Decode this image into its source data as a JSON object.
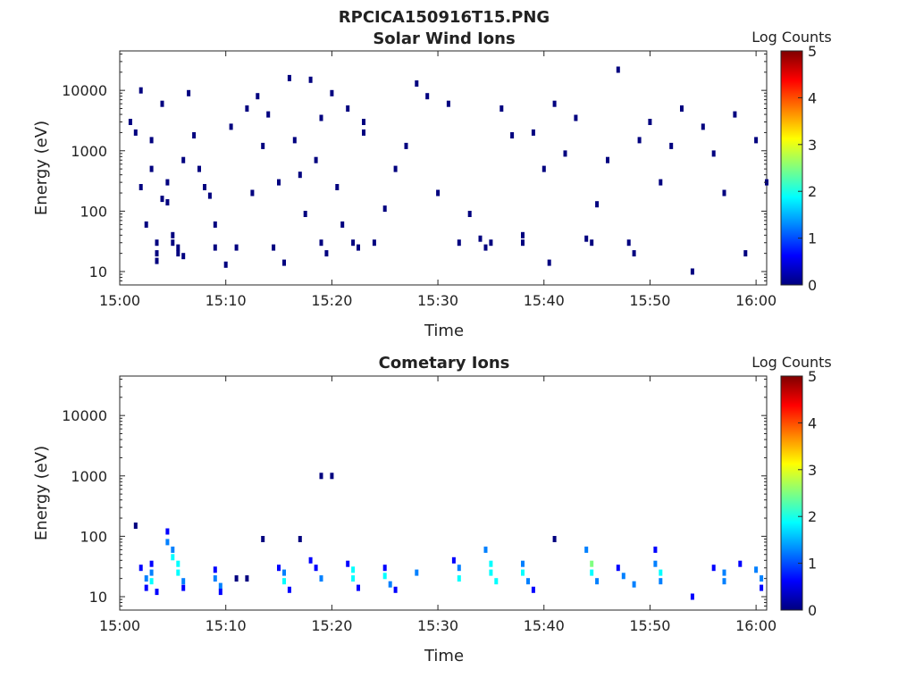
{
  "figure_title": "RPCICA150916T15.PNG",
  "colormap": [
    "#00007f",
    "#0000ff",
    "#0080ff",
    "#00ffff",
    "#80ff80",
    "#ffff00",
    "#ff8000",
    "#ff0000",
    "#7f0000"
  ],
  "chart_data": [
    {
      "type": "heatmap",
      "title": "Solar Wind Ions",
      "xlabel": "Time",
      "ylabel": "Energy (eV)",
      "colorbar_label": "Log Counts",
      "x_ticks": [
        "15:00",
        "15:10",
        "15:20",
        "15:30",
        "15:40",
        "15:50",
        "16:00"
      ],
      "xlim": [
        "15:00",
        "16:01"
      ],
      "y_scale": "log",
      "y_ticks": [
        10,
        100,
        1000,
        10000
      ],
      "y_tick_labels": [
        "10",
        "100",
        "1000",
        "10000"
      ],
      "ylim": [
        6,
        45000
      ],
      "clim": [
        0,
        5
      ],
      "colorbar_ticks": [
        "0",
        "1",
        "2",
        "3",
        "4",
        "5"
      ],
      "cells": [
        [
          "15:01",
          3000,
          0.2
        ],
        [
          "15:01.5",
          2000,
          0.2
        ],
        [
          "15:02",
          10000,
          0.2
        ],
        [
          "15:02",
          250,
          0.2
        ],
        [
          "15:02.5",
          60,
          0.2
        ],
        [
          "15:03",
          1500,
          0.2
        ],
        [
          "15:03",
          500,
          0.2
        ],
        [
          "15:03.5",
          30,
          0.3
        ],
        [
          "15:03.5",
          20,
          0.3
        ],
        [
          "15:03.5",
          15,
          0.3
        ],
        [
          "15:04",
          6000,
          0.2
        ],
        [
          "15:04",
          160,
          0.2
        ],
        [
          "15:04.5",
          300,
          0.2
        ],
        [
          "15:04.5",
          140,
          0.2
        ],
        [
          "15:05",
          40,
          0.3
        ],
        [
          "15:05",
          30,
          0.3
        ],
        [
          "15:05.5",
          25,
          0.3
        ],
        [
          "15:05.5",
          20,
          0.3
        ],
        [
          "15:06",
          700,
          0.2
        ],
        [
          "15:06",
          18,
          0.3
        ],
        [
          "15:06.5",
          9000,
          0.2
        ],
        [
          "15:07",
          1800,
          0.2
        ],
        [
          "15:07.5",
          500,
          0.2
        ],
        [
          "15:08",
          250,
          0.2
        ],
        [
          "15:08.5",
          180,
          0.2
        ],
        [
          "15:09",
          60,
          0.2
        ],
        [
          "15:09",
          25,
          0.2
        ],
        [
          "15:10",
          13,
          0.2
        ],
        [
          "15:10.5",
          2500,
          0.2
        ],
        [
          "15:11",
          25,
          0.2
        ],
        [
          "15:12",
          5000,
          0.2
        ],
        [
          "15:12.5",
          200,
          0.2
        ],
        [
          "15:13",
          8000,
          0.2
        ],
        [
          "15:13.5",
          1200,
          0.2
        ],
        [
          "15:14",
          4000,
          0.2
        ],
        [
          "15:14.5",
          25,
          0.2
        ],
        [
          "15:15",
          300,
          0.2
        ],
        [
          "15:15.5",
          14,
          0.2
        ],
        [
          "15:16",
          16000,
          0.2
        ],
        [
          "15:16.5",
          1500,
          0.2
        ],
        [
          "15:17",
          400,
          0.2
        ],
        [
          "15:17.5",
          90,
          0.2
        ],
        [
          "15:18",
          15000,
          0.2
        ],
        [
          "15:18.5",
          700,
          0.2
        ],
        [
          "15:19",
          3500,
          0.2
        ],
        [
          "15:19",
          30,
          0.2
        ],
        [
          "15:19.5",
          20,
          0.2
        ],
        [
          "15:20",
          9000,
          0.2
        ],
        [
          "15:20.5",
          250,
          0.2
        ],
        [
          "15:21",
          60,
          0.2
        ],
        [
          "15:21.5",
          5000,
          0.2
        ],
        [
          "15:22",
          30,
          0.2
        ],
        [
          "15:22.5",
          25,
          0.2
        ],
        [
          "15:23",
          3000,
          0.2
        ],
        [
          "15:23",
          2000,
          0.2
        ],
        [
          "15:24",
          30,
          0.2
        ],
        [
          "15:25",
          110,
          0.2
        ],
        [
          "15:26",
          500,
          0.2
        ],
        [
          "15:27",
          1200,
          0.2
        ],
        [
          "15:28",
          13000,
          0.2
        ],
        [
          "15:29",
          8000,
          0.2
        ],
        [
          "15:30",
          200,
          0.2
        ],
        [
          "15:31",
          6000,
          0.2
        ],
        [
          "15:32",
          30,
          0.2
        ],
        [
          "15:33",
          90,
          0.2
        ],
        [
          "15:34",
          35,
          0.3
        ],
        [
          "15:34.5",
          25,
          0.3
        ],
        [
          "15:35",
          30,
          0.3
        ],
        [
          "15:36",
          5000,
          0.2
        ],
        [
          "15:37",
          1800,
          0.2
        ],
        [
          "15:38",
          40,
          0.3
        ],
        [
          "15:38",
          30,
          0.3
        ],
        [
          "15:39",
          2000,
          0.2
        ],
        [
          "15:40",
          500,
          0.2
        ],
        [
          "15:40.5",
          14,
          0.2
        ],
        [
          "15:41",
          6000,
          0.2
        ],
        [
          "15:42",
          900,
          0.2
        ],
        [
          "15:43",
          3500,
          0.2
        ],
        [
          "15:44",
          35,
          0.3
        ],
        [
          "15:44.5",
          30,
          0.3
        ],
        [
          "15:45",
          130,
          0.2
        ],
        [
          "15:46",
          700,
          0.2
        ],
        [
          "15:47",
          22000,
          0.2
        ],
        [
          "15:48",
          30,
          0.2
        ],
        [
          "15:48.5",
          20,
          0.2
        ],
        [
          "15:49",
          1500,
          0.2
        ],
        [
          "15:50",
          3000,
          0.2
        ],
        [
          "15:51",
          300,
          0.2
        ],
        [
          "15:52",
          1200,
          0.2
        ],
        [
          "15:53",
          5000,
          0.2
        ],
        [
          "15:54",
          10,
          0.2
        ],
        [
          "15:55",
          2500,
          0.2
        ],
        [
          "15:56",
          900,
          0.2
        ],
        [
          "15:57",
          200,
          0.2
        ],
        [
          "15:58",
          4000,
          0.2
        ],
        [
          "15:59",
          20,
          0.2
        ],
        [
          "16:00",
          1500,
          0.2
        ],
        [
          "16:01",
          300,
          0.2
        ]
      ]
    },
    {
      "type": "heatmap",
      "title": "Cometary Ions",
      "xlabel": "Time",
      "ylabel": "Energy (eV)",
      "colorbar_label": "Log Counts",
      "x_ticks": [
        "15:00",
        "15:10",
        "15:20",
        "15:30",
        "15:40",
        "15:50",
        "16:00"
      ],
      "xlim": [
        "15:00",
        "16:01"
      ],
      "y_scale": "log",
      "y_ticks": [
        10,
        100,
        1000,
        10000
      ],
      "y_tick_labels": [
        "10",
        "100",
        "1000",
        "10000"
      ],
      "ylim": [
        6,
        45000
      ],
      "clim": [
        0,
        5
      ],
      "colorbar_ticks": [
        "0",
        "1",
        "2",
        "3",
        "4",
        "5"
      ],
      "cells": [
        [
          "15:01.5",
          150,
          0.3
        ],
        [
          "15:02",
          30,
          0.6
        ],
        [
          "15:02.5",
          20,
          1.2
        ],
        [
          "15:02.5",
          14,
          0.8
        ],
        [
          "15:03",
          35,
          0.7
        ],
        [
          "15:03",
          25,
          1.5
        ],
        [
          "15:03",
          18,
          1.7
        ],
        [
          "15:03.5",
          12,
          0.4
        ],
        [
          "15:04.5",
          120,
          0.8
        ],
        [
          "15:04.5",
          80,
          1.0
        ],
        [
          "15:05",
          60,
          1.5
        ],
        [
          "15:05",
          45,
          1.8
        ],
        [
          "15:05.5",
          35,
          2.0
        ],
        [
          "15:05.5",
          25,
          1.6
        ],
        [
          "15:06",
          18,
          1.2
        ],
        [
          "15:06",
          14,
          0.8
        ],
        [
          "15:09",
          28,
          0.6
        ],
        [
          "15:09",
          20,
          1.3
        ],
        [
          "15:09.5",
          15,
          1.5
        ],
        [
          "15:09.5",
          12,
          0.6
        ],
        [
          "15:11",
          20,
          0.3
        ],
        [
          "15:12",
          20,
          0.3
        ],
        [
          "15:13.5",
          90,
          0.3
        ],
        [
          "15:15",
          30,
          0.5
        ],
        [
          "15:15.5",
          25,
          1.4
        ],
        [
          "15:15.5",
          18,
          1.6
        ],
        [
          "15:16",
          13,
          0.6
        ],
        [
          "15:17",
          90,
          0.2
        ],
        [
          "15:18",
          40,
          0.5
        ],
        [
          "15:18.5",
          30,
          0.8
        ],
        [
          "15:19",
          20,
          1.0
        ],
        [
          "15:19",
          1000,
          0.2
        ],
        [
          "15:20",
          1000,
          0.3
        ],
        [
          "15:21.5",
          35,
          0.5
        ],
        [
          "15:22",
          28,
          1.6
        ],
        [
          "15:22",
          20,
          1.9
        ],
        [
          "15:22.5",
          14,
          0.8
        ],
        [
          "15:25",
          30,
          0.6
        ],
        [
          "15:25",
          22,
          1.7
        ],
        [
          "15:25.5",
          16,
          1.5
        ],
        [
          "15:26",
          13,
          0.6
        ],
        [
          "15:28",
          25,
          1.0
        ],
        [
          "15:31.5",
          40,
          0.8
        ],
        [
          "15:32",
          30,
          1.4
        ],
        [
          "15:32",
          20,
          1.8
        ],
        [
          "15:34.5",
          60,
          1.2
        ],
        [
          "15:35",
          35,
          2.0
        ],
        [
          "15:35",
          25,
          2.1
        ],
        [
          "15:35.5",
          18,
          1.6
        ],
        [
          "15:38",
          35,
          1.0
        ],
        [
          "15:38",
          25,
          1.6
        ],
        [
          "15:38.5",
          18,
          1.4
        ],
        [
          "15:39",
          13,
          0.7
        ],
        [
          "15:41",
          90,
          0.3
        ],
        [
          "15:44",
          60,
          1.2
        ],
        [
          "15:44.5",
          35,
          2.2
        ],
        [
          "15:44.5",
          25,
          2.0
        ],
        [
          "15:45",
          18,
          1.2
        ],
        [
          "15:47",
          30,
          0.8
        ],
        [
          "15:47.5",
          22,
          1.4
        ],
        [
          "15:48.5",
          16,
          1.0
        ],
        [
          "15:50.5",
          60,
          0.6
        ],
        [
          "15:50.5",
          35,
          1.2
        ],
        [
          "15:51",
          25,
          1.7
        ],
        [
          "15:51",
          18,
          1.5
        ],
        [
          "15:54",
          10,
          0.5
        ],
        [
          "15:56",
          30,
          0.6
        ],
        [
          "15:57",
          25,
          1.0
        ],
        [
          "15:57",
          18,
          1.4
        ],
        [
          "15:58.5",
          35,
          0.8
        ],
        [
          "16:00",
          28,
          1.2
        ],
        [
          "16:00.5",
          20,
          1.5
        ],
        [
          "16:00.5",
          14,
          0.9
        ]
      ]
    }
  ]
}
